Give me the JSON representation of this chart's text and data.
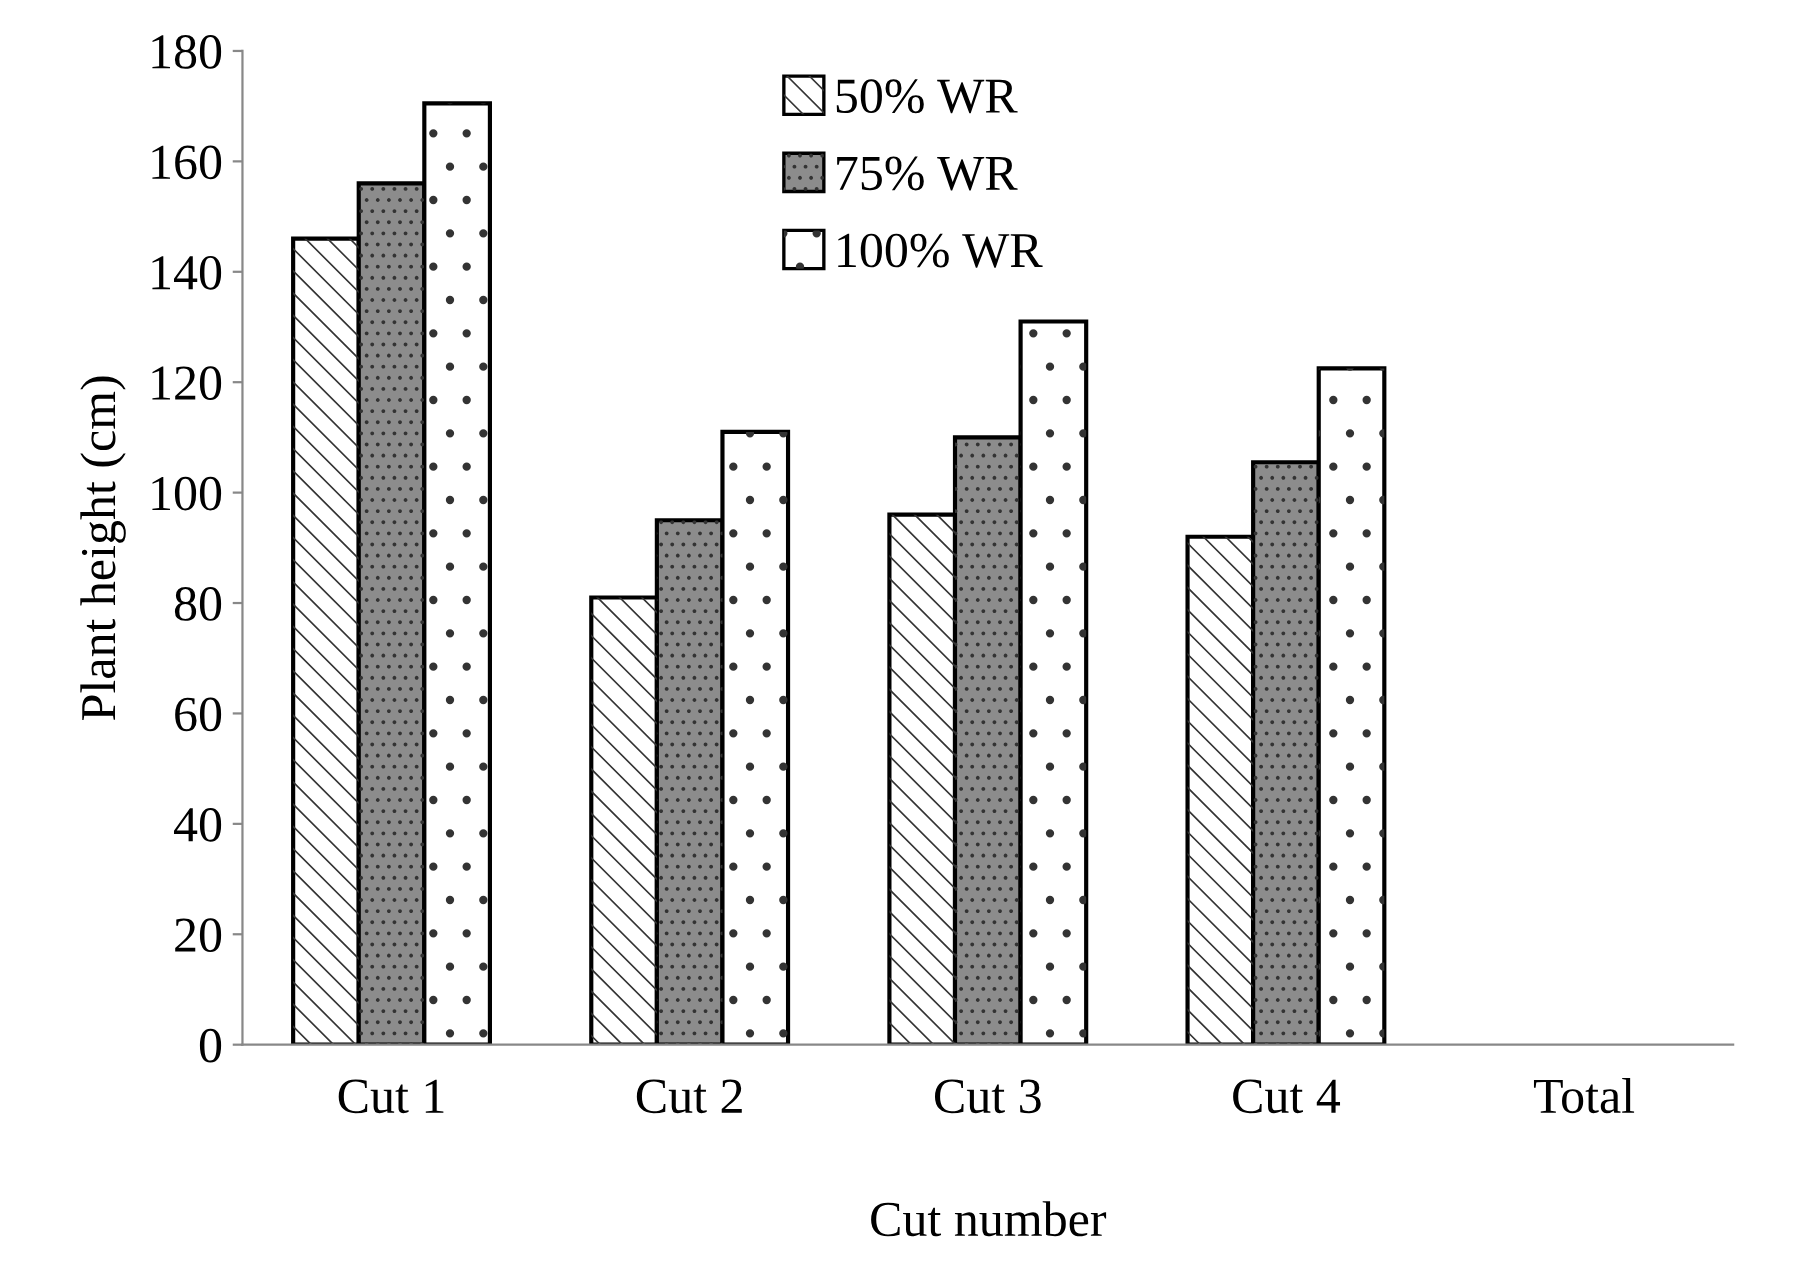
{
  "chart_data": {
    "type": "bar",
    "xlabel": "Cut number",
    "ylabel": "Plant height (cm)",
    "categories": [
      "Cut 1",
      "Cut 2",
      "Cut 3",
      "Cut 4",
      "Total"
    ],
    "series": [
      {
        "name": "50% WR",
        "color": "#ffffff",
        "values": [
          146,
          81,
          96,
          92,
          null
        ]
      },
      {
        "name": "75% WR",
        "color": "#8c8c8c",
        "values": [
          156,
          95,
          110,
          105.5,
          null
        ]
      },
      {
        "name": "100% WR",
        "color": "#ffffff",
        "values": [
          170.5,
          111,
          131,
          122.5,
          null
        ]
      }
    ],
    "ylim": [
      0,
      180
    ],
    "yticks": [
      0,
      20,
      40,
      60,
      80,
      100,
      120,
      140,
      160,
      180
    ],
    "grid": false,
    "legend": "top"
  }
}
